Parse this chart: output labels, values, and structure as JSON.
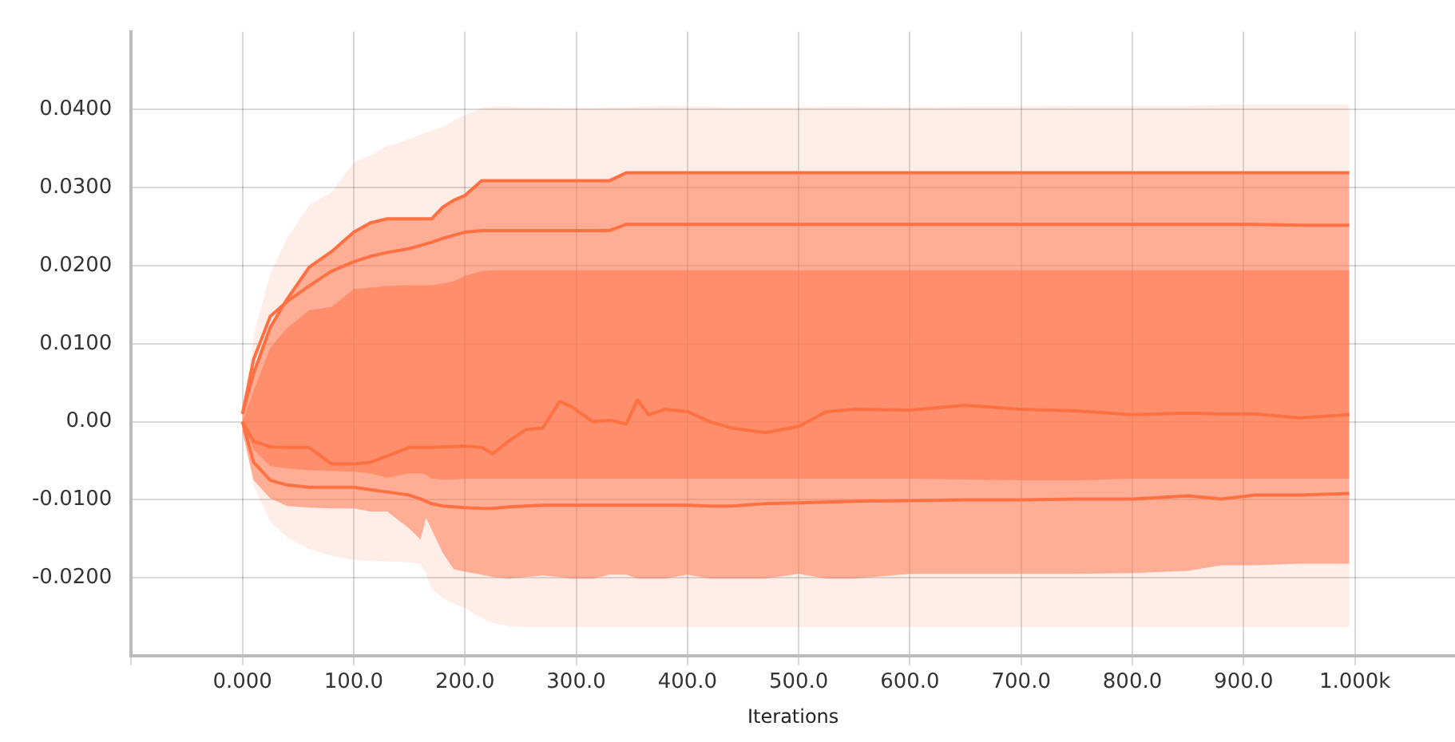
{
  "chart_data": {
    "type": "line",
    "xlabel": "Iterations",
    "x": [
      0,
      10,
      25,
      40,
      60,
      80,
      100,
      115,
      130,
      150,
      160,
      165,
      170,
      180,
      190,
      200,
      215,
      225,
      240,
      255,
      270,
      285,
      295,
      315,
      330,
      345,
      355,
      365,
      380,
      400,
      420,
      440,
      470,
      500,
      525,
      550,
      600,
      650,
      700,
      750,
      800,
      850,
      880,
      910,
      950,
      995
    ],
    "xlim": [
      -100,
      1090
    ],
    "xticks": [
      {
        "value": -100,
        "label": null
      },
      {
        "value": 0,
        "label": "0.000"
      },
      {
        "value": 100,
        "label": "100.0"
      },
      {
        "value": 200,
        "label": "200.0"
      },
      {
        "value": 300,
        "label": "300.0"
      },
      {
        "value": 400,
        "label": "400.0"
      },
      {
        "value": 500,
        "label": "500.0"
      },
      {
        "value": 600,
        "label": "600.0"
      },
      {
        "value": 700,
        "label": "700.0"
      },
      {
        "value": 800,
        "label": "800.0"
      },
      {
        "value": 900,
        "label": "900.0"
      },
      {
        "value": 1000,
        "label": "1.000k"
      }
    ],
    "ylim": [
      -0.03,
      0.05
    ],
    "yticks": [
      {
        "value": -0.02,
        "label": "-0.0200"
      },
      {
        "value": -0.01,
        "label": "-0.0100"
      },
      {
        "value": 0,
        "label": "0.00"
      },
      {
        "value": 0.01,
        "label": "0.0100"
      },
      {
        "value": 0.02,
        "label": "0.0200"
      },
      {
        "value": 0.03,
        "label": "0.0300"
      },
      {
        "value": 0.04,
        "label": "0.0400"
      }
    ],
    "grid": true,
    "legend": false,
    "marker": "none",
    "line_style": "solid",
    "series": [
      {
        "type": "line",
        "color": "#ff7043",
        "values": [
          0.001,
          0.0062,
          0.0121,
          0.0157,
          0.0198,
          0.0218,
          0.0243,
          0.0255,
          0.026,
          0.026,
          0.026,
          0.026,
          0.026,
          0.0275,
          0.0284,
          0.029,
          0.0309,
          0.0309,
          0.0309,
          0.0309,
          0.0309,
          0.0309,
          0.0309,
          0.0309,
          0.0309,
          0.0319,
          0.0319,
          0.0319,
          0.0319,
          0.0319,
          0.0319,
          0.0319,
          0.0319,
          0.0319,
          0.0319,
          0.0319,
          0.0319,
          0.0319,
          0.0319,
          0.0319,
          0.0319,
          0.0319,
          0.0319,
          0.0319,
          0.0319,
          0.0319
        ],
        "lower": [
          -0.001,
          -0.0082,
          -0.0128,
          -0.0148,
          -0.0163,
          -0.0172,
          -0.0177,
          -0.0178,
          -0.0179,
          -0.018,
          -0.0182,
          -0.0195,
          -0.0214,
          -0.0226,
          -0.0233,
          -0.0239,
          -0.0252,
          -0.0258,
          -0.0262,
          -0.0263,
          -0.0263,
          -0.0263,
          -0.0263,
          -0.0263,
          -0.0263,
          -0.0263,
          -0.0263,
          -0.0263,
          -0.0263,
          -0.0263,
          -0.0263,
          -0.0263,
          -0.0263,
          -0.0263,
          -0.0263,
          -0.0263,
          -0.0263,
          -0.0263,
          -0.0263,
          -0.0263,
          -0.0263,
          -0.0263,
          -0.0263,
          -0.0263,
          -0.0263,
          -0.0263
        ],
        "upper": [
          0.001,
          0.011,
          0.019,
          0.0235,
          0.0278,
          0.0294,
          0.0332,
          0.0341,
          0.0353,
          0.0362,
          0.0368,
          0.0371,
          0.0373,
          0.0378,
          0.0386,
          0.0393,
          0.0402,
          0.0404,
          0.0404,
          0.0403,
          0.0403,
          0.0402,
          0.0402,
          0.0402,
          0.0403,
          0.0403,
          0.0404,
          0.0404,
          0.0405,
          0.0404,
          0.0404,
          0.0403,
          0.0403,
          0.0403,
          0.0404,
          0.0404,
          0.0403,
          0.0404,
          0.0404,
          0.0405,
          0.0405,
          0.0405,
          0.0406,
          0.0406,
          0.0406,
          0.0406
        ]
      },
      {
        "type": "line",
        "color": "#ff7043",
        "values": [
          0.001,
          0.008,
          0.0135,
          0.0154,
          0.0174,
          0.0193,
          0.0205,
          0.0212,
          0.0217,
          0.0222,
          0.0226,
          0.0228,
          0.023,
          0.0235,
          0.0239,
          0.0243,
          0.0245,
          0.0245,
          0.0245,
          0.0245,
          0.0245,
          0.0245,
          0.0245,
          0.0245,
          0.0245,
          0.0253,
          0.0253,
          0.0253,
          0.0253,
          0.0253,
          0.0253,
          0.0253,
          0.0253,
          0.0253,
          0.0253,
          0.0253,
          0.0253,
          0.0253,
          0.0253,
          0.0253,
          0.0253,
          0.0253,
          0.0253,
          0.0253,
          0.0252,
          0.0252
        ],
        "lower": [
          -0.0013,
          -0.0075,
          -0.0098,
          -0.0108,
          -0.011,
          -0.0111,
          -0.0111,
          -0.0115,
          -0.0115,
          -0.0137,
          -0.0151,
          -0.0123,
          -0.0138,
          -0.0168,
          -0.0189,
          -0.0192,
          -0.0196,
          -0.0199,
          -0.0201,
          -0.0199,
          -0.0197,
          -0.0199,
          -0.0201,
          -0.0201,
          -0.0196,
          -0.0196,
          -0.0201,
          -0.0201,
          -0.0201,
          -0.0196,
          -0.0201,
          -0.0201,
          -0.0201,
          -0.0195,
          -0.0201,
          -0.0201,
          -0.0195,
          -0.0195,
          -0.0195,
          -0.0195,
          -0.0194,
          -0.0191,
          -0.0184,
          -0.0184,
          -0.0182,
          -0.0182
        ],
        "upper": [
          0.001,
          0.0062,
          0.0121,
          0.0157,
          0.0198,
          0.0218,
          0.0243,
          0.0255,
          0.026,
          0.026,
          0.026,
          0.026,
          0.026,
          0.0275,
          0.0284,
          0.029,
          0.0309,
          0.0309,
          0.0309,
          0.0309,
          0.0309,
          0.0309,
          0.0309,
          0.0309,
          0.0309,
          0.0319,
          0.0319,
          0.0319,
          0.0319,
          0.0319,
          0.0319,
          0.0319,
          0.0319,
          0.0319,
          0.0319,
          0.0319,
          0.0319,
          0.0319,
          0.0319,
          0.0319,
          0.0319,
          0.0319,
          0.0319,
          0.0319,
          0.0319,
          0.0319
        ]
      },
      {
        "type": "line",
        "color": "#ff7043",
        "values": [
          0,
          -0.0052,
          -0.0075,
          -0.0081,
          -0.0084,
          -0.0084,
          -0.0084,
          -0.0087,
          -0.009,
          -0.0094,
          -0.0099,
          -0.0102,
          -0.0105,
          -0.0108,
          -0.0109,
          -0.011,
          -0.0111,
          -0.0111,
          -0.0109,
          -0.0108,
          -0.0107,
          -0.0107,
          -0.0107,
          -0.0107,
          -0.0107,
          -0.0107,
          -0.0107,
          -0.0107,
          -0.0107,
          -0.0107,
          -0.0108,
          -0.0108,
          -0.0105,
          -0.0104,
          -0.0103,
          -0.0102,
          -0.0101,
          -0.01,
          -0.01,
          -0.0099,
          -0.0099,
          -0.0095,
          -0.0099,
          -0.0094,
          -0.0094,
          -0.0092
        ]
      },
      {
        "type": "line",
        "color": "#ff7043",
        "values": [
          0,
          -0.0025,
          -0.0032,
          -0.0033,
          -0.0033,
          -0.0054,
          -0.0054,
          -0.0052,
          -0.0044,
          -0.0033,
          -0.0033,
          -0.0033,
          -0.0033,
          -0.0032,
          -0.0032,
          -0.0031,
          -0.0033,
          -0.0041,
          -0.0024,
          -0.001,
          -0.0008,
          0.0026,
          0.002,
          0,
          0.0002,
          -0.0003,
          0.0028,
          0.0009,
          0.0016,
          0.0013,
          0,
          -0.0008,
          -0.0014,
          -0.0006,
          0.0013,
          0.0016,
          0.0015,
          0.0021,
          0.0016,
          0.0014,
          0.0009,
          0.0011,
          0.001,
          0.001,
          0.0005,
          0.0009
        ],
        "lower": [
          0,
          -0.0036,
          -0.0057,
          -0.006,
          -0.0062,
          -0.0063,
          -0.0064,
          -0.0066,
          -0.0072,
          -0.0066,
          -0.0066,
          -0.0068,
          -0.0073,
          -0.0074,
          -0.0074,
          -0.0073,
          -0.0073,
          -0.0073,
          -0.0073,
          -0.0073,
          -0.0073,
          -0.0073,
          -0.0073,
          -0.0073,
          -0.0073,
          -0.0073,
          -0.0073,
          -0.0073,
          -0.0073,
          -0.0073,
          -0.0073,
          -0.0073,
          -0.0073,
          -0.0073,
          -0.0073,
          -0.0073,
          -0.0073,
          -0.0074,
          -0.0075,
          -0.0075,
          -0.0073,
          -0.0073,
          -0.0073,
          -0.0073,
          -0.0073,
          -0.0073
        ],
        "upper": [
          0,
          0.004,
          0.0095,
          0.012,
          0.0143,
          0.0147,
          0.017,
          0.0172,
          0.0174,
          0.0175,
          0.0175,
          0.0175,
          0.0175,
          0.0177,
          0.018,
          0.0187,
          0.0193,
          0.0194,
          0.0194,
          0.0194,
          0.0194,
          0.0194,
          0.0194,
          0.0194,
          0.0194,
          0.0194,
          0.0194,
          0.0194,
          0.0194,
          0.0194,
          0.0194,
          0.0194,
          0.0194,
          0.0194,
          0.0194,
          0.0194,
          0.0194,
          0.0194,
          0.0194,
          0.0194,
          0.0194,
          0.0194,
          0.0194,
          0.0194,
          0.0194,
          0.0194
        ]
      }
    ]
  }
}
